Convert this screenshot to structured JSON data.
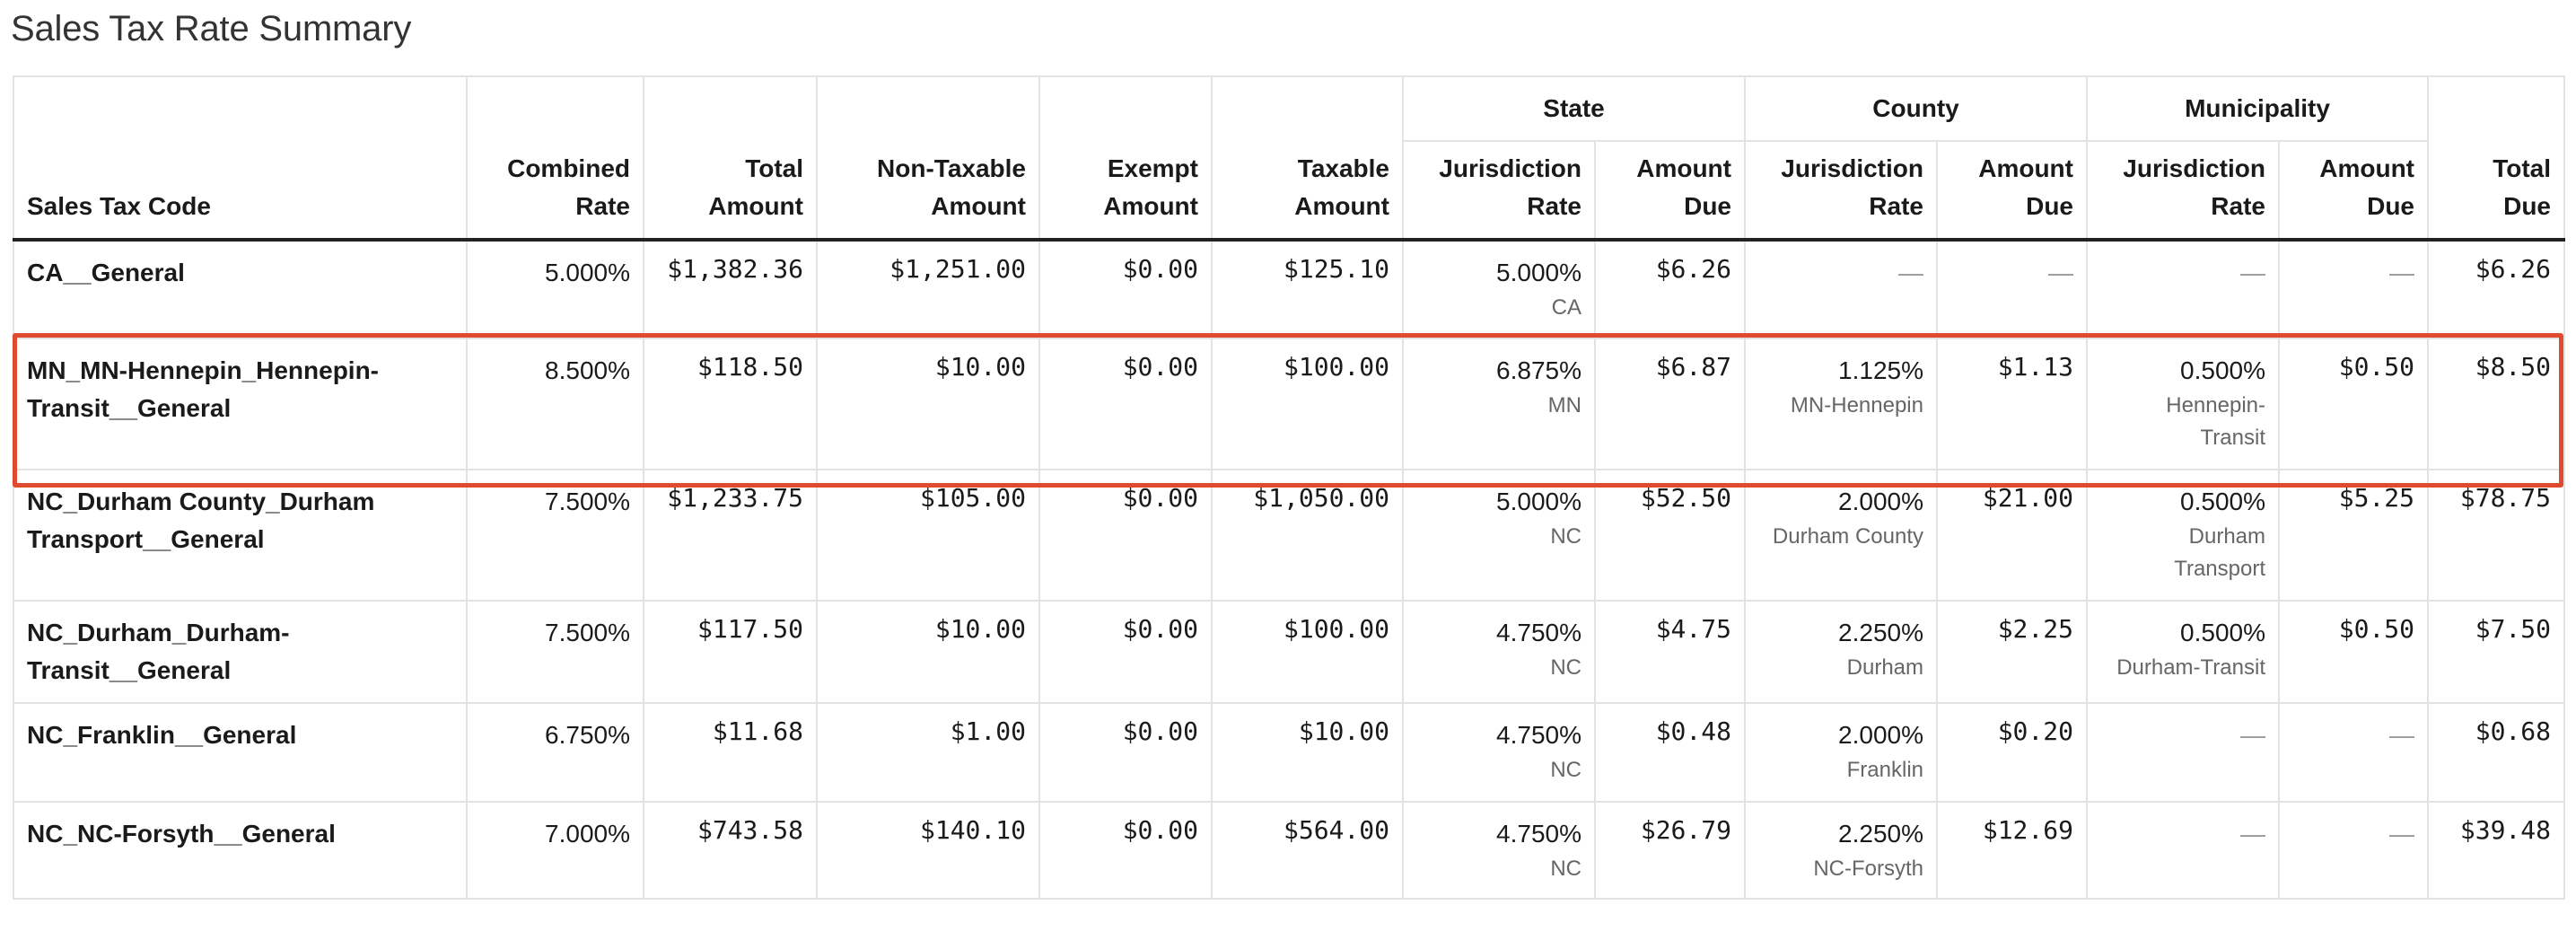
{
  "title": "Sales Tax Rate Summary",
  "groups": {
    "state": "State",
    "county": "County",
    "municipality": "Municipality"
  },
  "headers": {
    "code": "Sales Tax Code",
    "combined_rate_1": "Combined",
    "combined_rate_2": "Rate",
    "total_amount_1": "Total",
    "total_amount_2": "Amount",
    "non_taxable_1": "Non-Taxable",
    "non_taxable_2": "Amount",
    "exempt_1": "Exempt",
    "exempt_2": "Amount",
    "taxable_1": "Taxable",
    "taxable_2": "Amount",
    "juris_rate_1": "Jurisdiction",
    "juris_rate_2": "Rate",
    "amount_due_1": "Amount",
    "amount_due_2": "Due",
    "total_due_1": "Total",
    "total_due_2": "Due"
  },
  "rows": [
    {
      "code": "CA__General",
      "combined_rate": "5.000%",
      "total_amount": "$1,382.36",
      "non_taxable": "$1,251.00",
      "exempt": "$0.00",
      "taxable": "$125.10",
      "state_rate": "5.000%",
      "state_juris": "CA",
      "state_due": "$6.26",
      "county_rate": "—",
      "county_juris": "",
      "county_due": "—",
      "muni_rate": "—",
      "muni_juris": "",
      "muni_due": "—",
      "total_due": "$6.26"
    },
    {
      "code": "MN_MN-Hennepin_Hennepin-Transit__General",
      "code_line1": "MN_MN-Hennepin_Hennepin-",
      "code_line2": "Transit__General",
      "combined_rate": "8.500%",
      "total_amount": "$118.50",
      "non_taxable": "$10.00",
      "exempt": "$0.00",
      "taxable": "$100.00",
      "state_rate": "6.875%",
      "state_juris": "MN",
      "state_due": "$6.87",
      "county_rate": "1.125%",
      "county_juris": "MN-Hennepin",
      "county_due": "$1.13",
      "muni_rate": "0.500%",
      "muni_juris_line1": "Hennepin-",
      "muni_juris_line2": "Transit",
      "muni_due": "$0.50",
      "total_due": "$8.50"
    },
    {
      "code_line1": "NC_Durham County_Durham",
      "code_line2": "Transport__General",
      "combined_rate": "7.500%",
      "total_amount": "$1,233.75",
      "non_taxable": "$105.00",
      "exempt": "$0.00",
      "taxable": "$1,050.00",
      "state_rate": "5.000%",
      "state_juris": "NC",
      "state_due": "$52.50",
      "county_rate": "2.000%",
      "county_juris": "Durham County",
      "county_due": "$21.00",
      "muni_rate": "0.500%",
      "muni_juris_line1": "Durham",
      "muni_juris_line2": "Transport",
      "muni_due": "$5.25",
      "total_due": "$78.75"
    },
    {
      "code_line1": "NC_Durham_Durham-",
      "code_line2": "Transit__General",
      "combined_rate": "7.500%",
      "total_amount": "$117.50",
      "non_taxable": "$10.00",
      "exempt": "$0.00",
      "taxable": "$100.00",
      "state_rate": "4.750%",
      "state_juris": "NC",
      "state_due": "$4.75",
      "county_rate": "2.250%",
      "county_juris": "Durham",
      "county_due": "$2.25",
      "muni_rate": "0.500%",
      "muni_juris": "Durham-Transit",
      "muni_due": "$0.50",
      "total_due": "$7.50"
    },
    {
      "code": "NC_Franklin__General",
      "combined_rate": "6.750%",
      "total_amount": "$11.68",
      "non_taxable": "$1.00",
      "exempt": "$0.00",
      "taxable": "$10.00",
      "state_rate": "4.750%",
      "state_juris": "NC",
      "state_due": "$0.48",
      "county_rate": "2.000%",
      "county_juris": "Franklin",
      "county_due": "$0.20",
      "muni_rate": "—",
      "muni_due": "—",
      "total_due": "$0.68"
    },
    {
      "code": "NC_NC-Forsyth__General",
      "combined_rate": "7.000%",
      "total_amount": "$743.58",
      "non_taxable": "$140.10",
      "exempt": "$0.00",
      "taxable": "$564.00",
      "state_rate": "4.750%",
      "state_juris": "NC",
      "state_due": "$26.79",
      "county_rate": "2.250%",
      "county_juris": "NC-Forsyth",
      "county_due": "$12.69",
      "muni_rate": "—",
      "muni_due": "—",
      "total_due": "$39.48"
    }
  ]
}
